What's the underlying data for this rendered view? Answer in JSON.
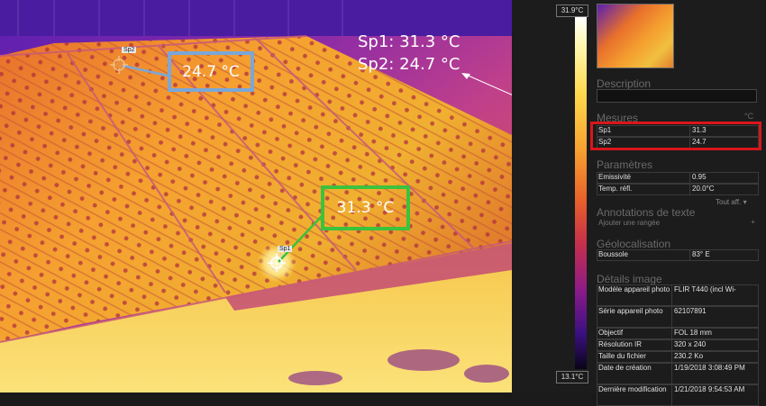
{
  "image_overlay": {
    "annotation_line1": "Sp1: 31.3 °C",
    "annotation_line2": "Sp2: 24.7 °C",
    "box_sp2": "24.7 °C",
    "box_sp1": "31.3 °C",
    "spot1_label": "Sp1",
    "spot2_label": "Sp2",
    "box_sp2_color": "#7aa7d8",
    "box_sp1_color": "#3cc23c"
  },
  "scale": {
    "max": "31.9°C",
    "min": "13.1°C"
  },
  "panel": {
    "description_title": "Description",
    "mesures_title": "Mesures",
    "mesures_unit": "°C",
    "mesures": [
      {
        "name": "Sp1",
        "value": "31.3"
      },
      {
        "name": "Sp2",
        "value": "24.7"
      }
    ],
    "highlight_color": "#d8161b",
    "parametres_title": "Paramètres",
    "parametres": [
      {
        "name": "Emissivité",
        "value": "0.95"
      },
      {
        "name": "Temp. réfl.",
        "value": "20.0°C"
      }
    ],
    "tout_aff": "Tout aff.",
    "annotations_title": "Annotations de texte",
    "ajouter_rangee": "Ajouter une rangée",
    "geoloc_title": "Géolocalisation",
    "geoloc": [
      {
        "name": "Boussole",
        "value": "83° E"
      }
    ],
    "details_title": "Détails image",
    "details": [
      {
        "name": "Modèle appareil photo",
        "value": "FLIR T440 (incl Wi-"
      },
      {
        "name": "Série appareil photo",
        "value": "62107891"
      },
      {
        "name": "Objectif",
        "value": "FOL 18 mm"
      },
      {
        "name": "Résolution IR",
        "value": "320 x 240"
      },
      {
        "name": "Taille du fichier",
        "value": "230.2 Ko"
      },
      {
        "name": "Date de création",
        "value": "1/19/2018 3:08:49 PM"
      },
      {
        "name": "Dernière modification",
        "value": "1/21/2018 9:54:53 AM"
      }
    ]
  }
}
